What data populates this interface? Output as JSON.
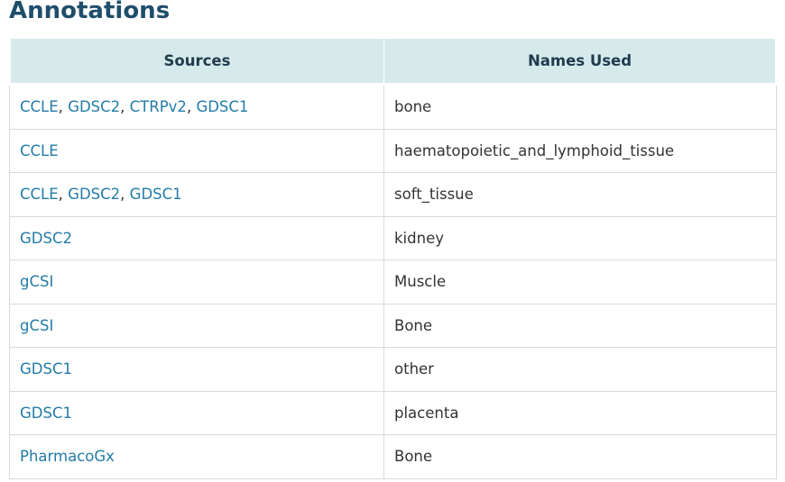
{
  "page_title": "Annotations",
  "table": {
    "headers": [
      "Sources",
      "Names Used"
    ],
    "rows": [
      {
        "sources": [
          "CCLE",
          "GDSC2",
          "CTRPv2",
          "GDSC1"
        ],
        "name": "bone"
      },
      {
        "sources": [
          "CCLE"
        ],
        "name": "haematopoietic_and_lymphoid_tissue"
      },
      {
        "sources": [
          "CCLE",
          "GDSC2",
          "GDSC1"
        ],
        "name": "soft_tissue"
      },
      {
        "sources": [
          "GDSC2"
        ],
        "name": "kidney"
      },
      {
        "sources": [
          "gCSI"
        ],
        "name": "Muscle"
      },
      {
        "sources": [
          "gCSI"
        ],
        "name": "Bone"
      },
      {
        "sources": [
          "GDSC1"
        ],
        "name": "other"
      },
      {
        "sources": [
          "GDSC1"
        ],
        "name": "placenta"
      },
      {
        "sources": [
          "PharmacoGx"
        ],
        "name": "Bone"
      }
    ]
  },
  "colors": {
    "title": "#1f4e6b",
    "header_bg": "#d6eaec",
    "link": "#237ca8",
    "border": "#dadada"
  }
}
